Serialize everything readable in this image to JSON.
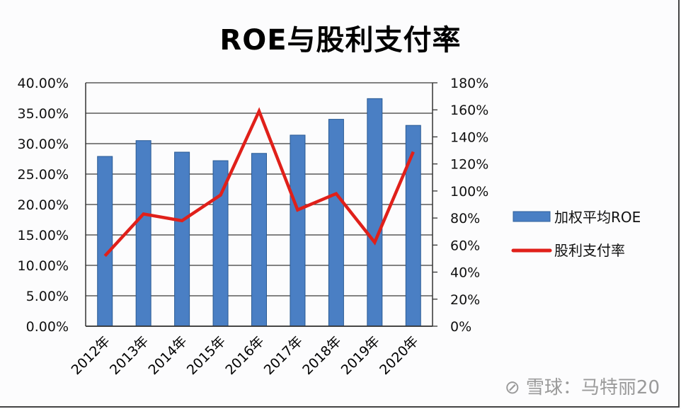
{
  "chart_data": {
    "type": "bar",
    "title": "ROE与股利支付率",
    "categories": [
      "2012年",
      "2013年",
      "2014年",
      "2015年",
      "2016年",
      "2017年",
      "2018年",
      "2019年",
      "2020年"
    ],
    "series": [
      {
        "name": "加权平均ROE",
        "type": "bar",
        "axis": "left",
        "color": "#4a7fc4",
        "values": [
          27.9,
          30.5,
          28.6,
          27.2,
          28.4,
          31.4,
          34.0,
          37.4,
          33.0
        ]
      },
      {
        "name": "股利支付率",
        "type": "line",
        "axis": "right",
        "color": "#e0201a",
        "values": [
          52,
          83,
          78,
          97,
          159,
          86,
          98,
          62,
          129
        ]
      }
    ],
    "left_axis": {
      "min": 0,
      "max": 40,
      "step": 5,
      "tick_labels": [
        "0.00%",
        "5.00%",
        "10.00%",
        "15.00%",
        "20.00%",
        "25.00%",
        "30.00%",
        "35.00%",
        "40.00%"
      ]
    },
    "right_axis": {
      "min": 0,
      "max": 180,
      "step": 20,
      "tick_labels": [
        "0%",
        "20%",
        "40%",
        "60%",
        "80%",
        "100%",
        "120%",
        "140%",
        "160%",
        "180%"
      ]
    },
    "xlabel": "",
    "ylabel": "",
    "grid": true,
    "legend_position": "right"
  },
  "title": "ROE与股利支付率",
  "legend": [
    {
      "label": "加权平均ROE",
      "kind": "bar"
    },
    {
      "label": "股利支付率",
      "kind": "line"
    }
  ],
  "watermark": "雪球：马特丽20"
}
